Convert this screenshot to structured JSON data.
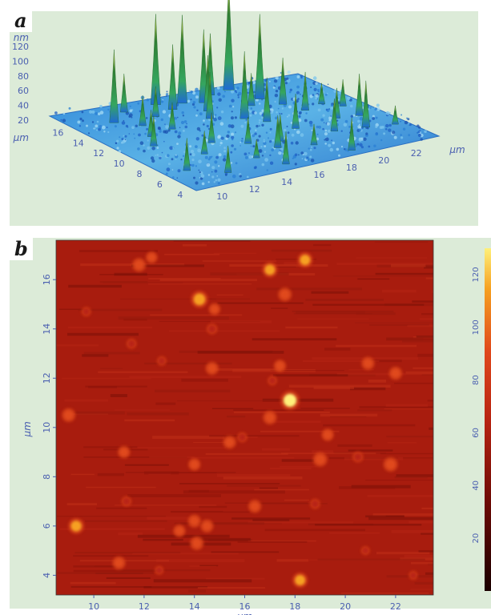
{
  "panels": [
    {
      "letter": "a"
    },
    {
      "letter": "b"
    }
  ],
  "chart_data": [
    {
      "type": "surface3d",
      "z_axis": {
        "label": "nm",
        "ticks": [
          20,
          40,
          60,
          80,
          100,
          120
        ]
      },
      "y_axis": {
        "label": "µm",
        "ticks": [
          4,
          6,
          8,
          10,
          12,
          14,
          16
        ]
      },
      "x_axis": {
        "label": "µm",
        "ticks": [
          10,
          12,
          14,
          16,
          18,
          20,
          22
        ]
      },
      "xlim": [
        8.5,
        23.5
      ],
      "ylim": [
        3.2,
        17.6
      ],
      "zlim": [
        20,
        125
      ],
      "base_level_nm": 32,
      "colors": [
        "#1e6ad4",
        "#5ab2e6",
        "#33a860",
        "#2e7d32",
        "#e8d44a"
      ],
      "peaks": [
        {
          "x": 10.8,
          "y": 15.0,
          "z": 95
        },
        {
          "x": 12.2,
          "y": 16.3,
          "z": 65
        },
        {
          "x": 11.8,
          "y": 13.8,
          "z": 58
        },
        {
          "x": 12.8,
          "y": 12.5,
          "z": 55
        },
        {
          "x": 14.3,
          "y": 16.6,
          "z": 110
        },
        {
          "x": 14.6,
          "y": 15.4,
          "z": 88
        },
        {
          "x": 15.6,
          "y": 16.1,
          "z": 108
        },
        {
          "x": 16.0,
          "y": 14.2,
          "z": 80
        },
        {
          "x": 15.4,
          "y": 13.0,
          "z": 72
        },
        {
          "x": 16.6,
          "y": 15.6,
          "z": 95
        },
        {
          "x": 17.6,
          "y": 16.6,
          "z": 85
        },
        {
          "x": 16.9,
          "y": 12.0,
          "z": 90
        },
        {
          "x": 17.6,
          "y": 10.9,
          "z": 70
        },
        {
          "x": 18.4,
          "y": 13.8,
          "z": 60
        },
        {
          "x": 18.9,
          "y": 16.9,
          "z": 125
        },
        {
          "x": 19.4,
          "y": 14.6,
          "z": 105
        },
        {
          "x": 19.9,
          "y": 13.1,
          "z": 72
        },
        {
          "x": 20.3,
          "y": 11.5,
          "z": 65
        },
        {
          "x": 18.2,
          "y": 9.0,
          "z": 62
        },
        {
          "x": 20.9,
          "y": 9.3,
          "z": 58
        },
        {
          "x": 21.6,
          "y": 12.0,
          "z": 50
        },
        {
          "x": 22.3,
          "y": 11.0,
          "z": 55
        },
        {
          "x": 22.1,
          "y": 9.0,
          "z": 68
        },
        {
          "x": 21.3,
          "y": 7.0,
          "z": 72
        },
        {
          "x": 22.8,
          "y": 6.5,
          "z": 48
        },
        {
          "x": 19.6,
          "y": 7.4,
          "z": 60
        },
        {
          "x": 17.5,
          "y": 6.0,
          "z": 50
        },
        {
          "x": 16.4,
          "y": 7.6,
          "z": 55
        },
        {
          "x": 14.8,
          "y": 8.2,
          "z": 55
        },
        {
          "x": 13.9,
          "y": 5.9,
          "z": 48
        },
        {
          "x": 13.3,
          "y": 9.4,
          "z": 58
        },
        {
          "x": 12.0,
          "y": 8.0,
          "z": 52
        },
        {
          "x": 10.5,
          "y": 10.6,
          "z": 58
        },
        {
          "x": 9.8,
          "y": 6.2,
          "z": 60
        },
        {
          "x": 11.4,
          "y": 4.7,
          "z": 55
        },
        {
          "x": 14.6,
          "y": 4.1,
          "z": 60
        },
        {
          "x": 15.7,
          "y": 6.7,
          "z": 60
        },
        {
          "x": 18.6,
          "y": 4.0,
          "z": 60
        },
        {
          "x": 11.2,
          "y": 12.0,
          "z": 55
        },
        {
          "x": 13.2,
          "y": 14.8,
          "z": 58
        }
      ]
    },
    {
      "type": "heatmap",
      "x_axis": {
        "label": "µm",
        "ticks": [
          10,
          12,
          14,
          16,
          18,
          20,
          22
        ]
      },
      "y_axis": {
        "label": "µm",
        "ticks": [
          4,
          6,
          8,
          10,
          12,
          14,
          16
        ]
      },
      "colorbar": {
        "ticks": [
          20,
          40,
          60,
          80,
          100,
          120
        ]
      },
      "xlim": [
        8.5,
        23.5
      ],
      "ylim": [
        3.2,
        17.6
      ],
      "zlim": [
        0,
        130
      ],
      "base_level_nm": 32,
      "colors": [
        "#1a0000",
        "#6a0a05",
        "#b82412",
        "#e0481c",
        "#f6a020",
        "#fff07a"
      ],
      "particles": [
        {
          "x": 11.8,
          "y": 16.6,
          "z": 85
        },
        {
          "x": 12.3,
          "y": 16.9,
          "z": 70
        },
        {
          "x": 17.0,
          "y": 16.4,
          "z": 95
        },
        {
          "x": 18.4,
          "y": 16.8,
          "z": 95
        },
        {
          "x": 14.2,
          "y": 15.2,
          "z": 110
        },
        {
          "x": 14.8,
          "y": 14.8,
          "z": 70
        },
        {
          "x": 17.6,
          "y": 15.4,
          "z": 85
        },
        {
          "x": 9.7,
          "y": 14.7,
          "z": 50
        },
        {
          "x": 14.7,
          "y": 14.0,
          "z": 60
        },
        {
          "x": 11.5,
          "y": 13.4,
          "z": 55
        },
        {
          "x": 17.4,
          "y": 12.5,
          "z": 75
        },
        {
          "x": 20.9,
          "y": 12.6,
          "z": 80
        },
        {
          "x": 22.0,
          "y": 12.2,
          "z": 80
        },
        {
          "x": 14.7,
          "y": 12.4,
          "z": 80
        },
        {
          "x": 12.7,
          "y": 12.7,
          "z": 50
        },
        {
          "x": 17.8,
          "y": 11.1,
          "z": 125
        },
        {
          "x": 17.1,
          "y": 11.9,
          "z": 50
        },
        {
          "x": 17.0,
          "y": 10.4,
          "z": 85
        },
        {
          "x": 9.0,
          "y": 10.5,
          "z": 85
        },
        {
          "x": 19.3,
          "y": 9.7,
          "z": 75
        },
        {
          "x": 15.4,
          "y": 9.4,
          "z": 80
        },
        {
          "x": 15.9,
          "y": 9.6,
          "z": 55
        },
        {
          "x": 11.2,
          "y": 9.0,
          "z": 75
        },
        {
          "x": 19.0,
          "y": 8.7,
          "z": 90
        },
        {
          "x": 20.5,
          "y": 8.8,
          "z": 60
        },
        {
          "x": 21.8,
          "y": 8.5,
          "z": 90
        },
        {
          "x": 14.0,
          "y": 8.5,
          "z": 75
        },
        {
          "x": 11.3,
          "y": 7.0,
          "z": 55
        },
        {
          "x": 16.4,
          "y": 6.8,
          "z": 80
        },
        {
          "x": 18.8,
          "y": 6.9,
          "z": 55
        },
        {
          "x": 9.3,
          "y": 6.0,
          "z": 100
        },
        {
          "x": 13.4,
          "y": 5.8,
          "z": 75
        },
        {
          "x": 14.0,
          "y": 6.2,
          "z": 80
        },
        {
          "x": 14.5,
          "y": 6.0,
          "z": 80
        },
        {
          "x": 14.1,
          "y": 5.3,
          "z": 85
        },
        {
          "x": 11.0,
          "y": 4.5,
          "z": 80
        },
        {
          "x": 18.2,
          "y": 3.8,
          "z": 95
        },
        {
          "x": 12.6,
          "y": 4.2,
          "z": 45
        },
        {
          "x": 20.8,
          "y": 5.0,
          "z": 45
        },
        {
          "x": 22.7,
          "y": 4.0,
          "z": 45
        }
      ]
    }
  ]
}
